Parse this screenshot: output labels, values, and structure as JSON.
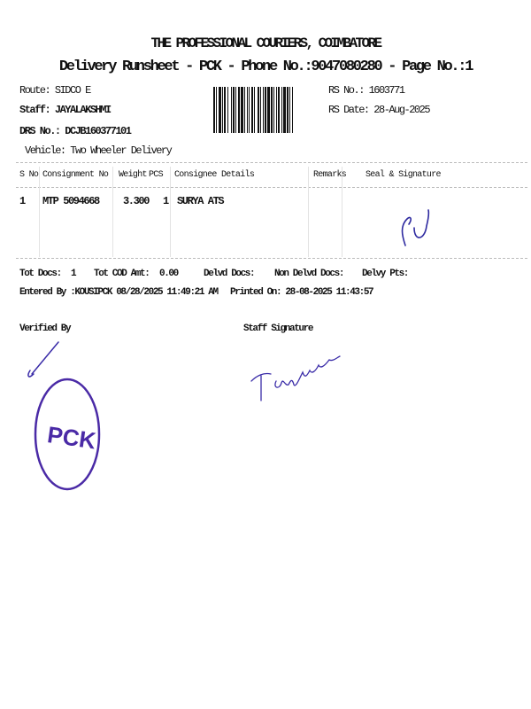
{
  "header": {
    "title": "THE PROFESSIONAL COURIERS, COIMBATORE",
    "subtitle": "Delivery Runsheet - PCK - Phone No.:9047080280 - Page No.:1"
  },
  "info": {
    "route": "Route: SIDCO E",
    "staff": "Staff: JAYALAKSHMI",
    "drs_no": "DRS No.: DCJB160377101",
    "vehicle": "Vehicle: Two Wheeler Delivery",
    "rs_no": "RS No.: 1603771",
    "rs_date": "RS Date: 28-Aug-2025"
  },
  "table": {
    "headers": [
      "S No",
      "Consignment No",
      "Weight",
      "PCS",
      "Consignee Details",
      "Remarks",
      "Seal & Signature"
    ],
    "rows": [
      {
        "sno": "1",
        "consignment": "MTP 5094668",
        "weight": "3.300",
        "pcs": "1",
        "consignee": "SURYA ATS",
        "remarks": ""
      }
    ]
  },
  "totals": {
    "tot_docs_label": "Tot Docs:",
    "tot_docs": "1",
    "tot_cod_label": "Tot COD Amt:",
    "tot_cod": "0.00",
    "delvd_docs_label": "Delvd Docs:",
    "non_delvd_docs_label": "Non Delvd Docs:",
    "delvy_pts_label": "Delvy Pts:"
  },
  "entered_by": "Entered By :KOUSIPCK 08/28/2025 11:49:21 AM",
  "printed_on": "Printed On: 28-08-2025 11:43:57",
  "verified_by": "Verified By",
  "staff_signature": "Staff Signature",
  "stamp": {
    "text": "PCK",
    "color": "#4a2aa6"
  },
  "ink_color": "#3a2ca8"
}
